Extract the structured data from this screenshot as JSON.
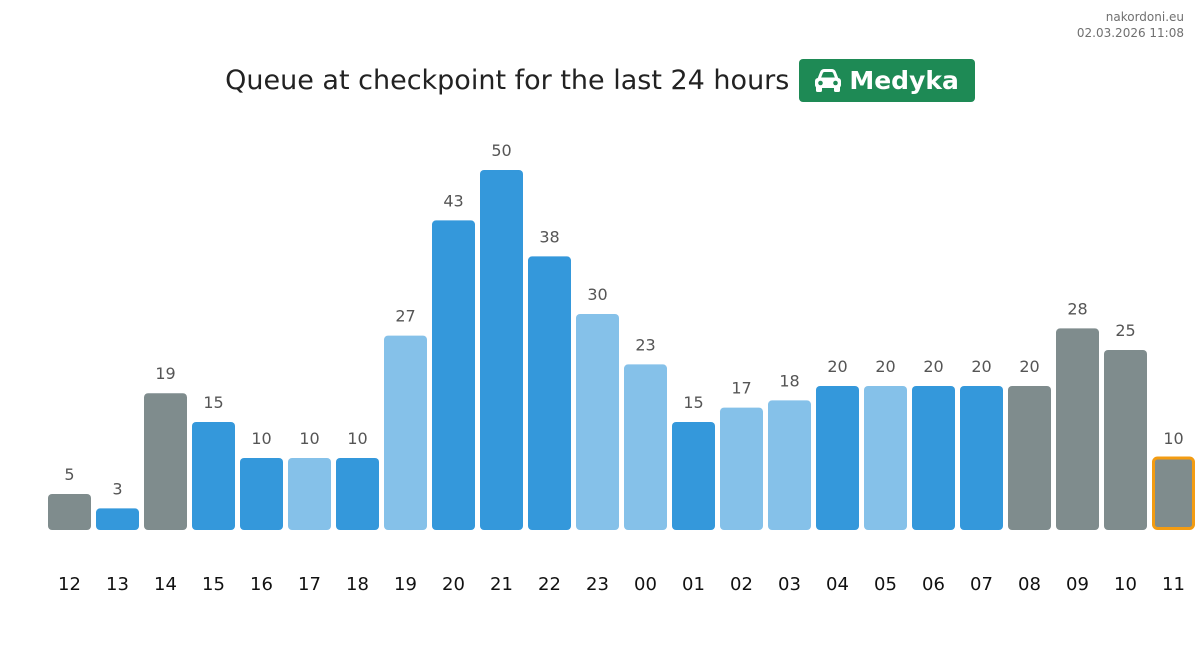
{
  "site": {
    "domain": "nakordoni.eu",
    "timestamp": "02.03.2026 11:08"
  },
  "header": {
    "title": "Queue at checkpoint for the last 24 hours",
    "checkpoint_name": "Medyka",
    "checkpoint_icon": "car-icon",
    "checkpoint_color": "#1e8a55"
  },
  "colors": {
    "dark": "#3498db",
    "light": "#85c1e9",
    "gray": "#7f8c8d",
    "current_outline": "#f39c12"
  },
  "chart_data": {
    "type": "bar",
    "title": "Queue at checkpoint for the last 24 hours",
    "xlabel": "",
    "ylabel": "",
    "ylim": [
      0,
      50
    ],
    "grid": false,
    "categories": [
      "12",
      "13",
      "14",
      "15",
      "16",
      "17",
      "18",
      "19",
      "20",
      "21",
      "22",
      "23",
      "00",
      "01",
      "02",
      "03",
      "04",
      "05",
      "06",
      "07",
      "08",
      "09",
      "10",
      "11"
    ],
    "values": [
      5,
      3,
      19,
      15,
      10,
      10,
      10,
      27,
      43,
      50,
      38,
      30,
      23,
      15,
      17,
      18,
      20,
      20,
      20,
      20,
      20,
      28,
      25,
      10
    ],
    "bar_colors": [
      "gray",
      "dark",
      "gray",
      "dark",
      "dark",
      "light",
      "dark",
      "light",
      "dark",
      "dark",
      "dark",
      "light",
      "light",
      "dark",
      "light",
      "light",
      "dark",
      "light",
      "dark",
      "dark",
      "gray",
      "gray",
      "gray",
      "gray"
    ],
    "highlighted_index": 23
  }
}
